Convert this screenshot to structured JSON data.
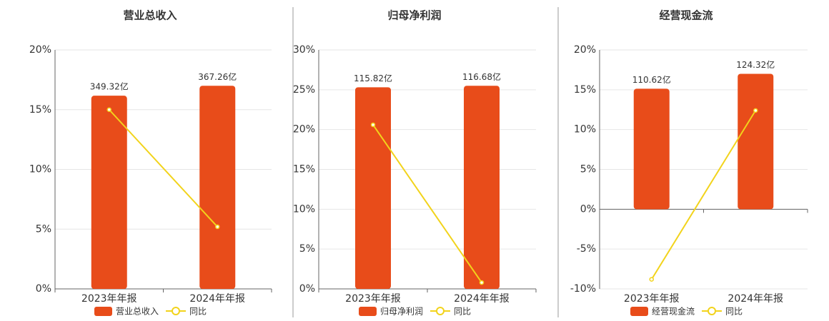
{
  "chart_data": [
    {
      "type": "bar",
      "title": "营业总收入",
      "categories": [
        "2023年年报",
        "2024年年报"
      ],
      "series": [
        {
          "name": "营业总收入",
          "type": "bar",
          "color": "#e84c1a",
          "values": [
            349.32,
            367.26
          ],
          "value_labels": [
            "349.32亿",
            "367.26亿"
          ]
        },
        {
          "name": "同比",
          "type": "line",
          "color": "#f2d31b",
          "values": [
            15.0,
            5.2
          ]
        }
      ],
      "ylim": [
        0,
        20
      ],
      "yticks": [
        {
          "value": 0,
          "label": "0%"
        },
        {
          "value": 5,
          "label": "5%"
        },
        {
          "value": 10,
          "label": "10%"
        },
        {
          "value": 15,
          "label": "15%"
        },
        {
          "value": 20,
          "label": "20%"
        }
      ],
      "grid": true
    },
    {
      "type": "bar",
      "title": "归母净利润",
      "categories": [
        "2023年年报",
        "2024年年报"
      ],
      "series": [
        {
          "name": "归母净利润",
          "type": "bar",
          "color": "#e84c1a",
          "values": [
            115.82,
            116.68
          ],
          "value_labels": [
            "115.82亿",
            "116.68亿"
          ]
        },
        {
          "name": "同比",
          "type": "line",
          "color": "#f2d31b",
          "values": [
            20.6,
            0.8
          ]
        }
      ],
      "ylim": [
        0,
        30
      ],
      "yticks": [
        {
          "value": 0,
          "label": "0%"
        },
        {
          "value": 5,
          "label": "5%"
        },
        {
          "value": 10,
          "label": "10%"
        },
        {
          "value": 15,
          "label": "15%"
        },
        {
          "value": 20,
          "label": "20%"
        },
        {
          "value": 25,
          "label": "25%"
        },
        {
          "value": 30,
          "label": "30%"
        }
      ],
      "grid": true
    },
    {
      "type": "bar",
      "title": "经营现金流",
      "categories": [
        "2023年年报",
        "2024年年报"
      ],
      "series": [
        {
          "name": "经营现金流",
          "type": "bar",
          "color": "#e84c1a",
          "values": [
            110.62,
            124.32
          ],
          "value_labels": [
            "110.62亿",
            "124.32亿"
          ]
        },
        {
          "name": "同比",
          "type": "line",
          "color": "#f2d31b",
          "values": [
            -8.8,
            12.4
          ]
        }
      ],
      "ylim": [
        -10,
        20
      ],
      "yticks": [
        {
          "value": -10,
          "label": "-10%"
        },
        {
          "value": -5,
          "label": "-5%"
        },
        {
          "value": 0,
          "label": "0%"
        },
        {
          "value": 5,
          "label": "5%"
        },
        {
          "value": 10,
          "label": "10%"
        },
        {
          "value": 15,
          "label": "15%"
        },
        {
          "value": 20,
          "label": "20%"
        }
      ],
      "grid": true
    }
  ]
}
